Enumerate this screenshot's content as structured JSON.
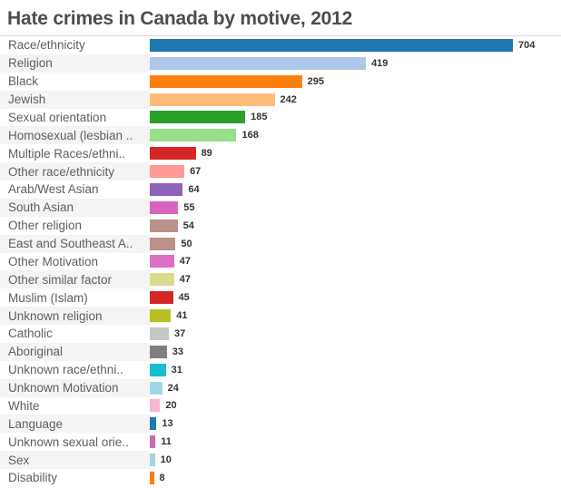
{
  "title": "Hate crimes in Canada by motive, 2012",
  "chart_data": {
    "type": "bar",
    "orientation": "horizontal",
    "title": "Hate crimes in Canada by motive, 2012",
    "xlabel": "",
    "ylabel": "",
    "xlim": [
      0,
      704
    ],
    "grid": false,
    "legend": false,
    "value_labels_shown": true,
    "categories": [
      "Race/ethnicity",
      "Religion",
      "Black",
      "Jewish",
      "Sexual orientation",
      "Homosexual (lesbian ..",
      "Multiple Races/ethni..",
      "Other race/ethnicity",
      "Arab/West Asian",
      "South Asian",
      "Other religion",
      "East and Southeast A..",
      "Other Motivation",
      "Other similar factor",
      "Muslim (Islam)",
      "Unknown religion",
      "Catholic",
      "Aboriginal",
      "Unknown race/ethni..",
      "Unknown Motivation",
      "White",
      "Language",
      "Unknown sexual orie..",
      "Sex",
      "Disability"
    ],
    "values": [
      704,
      419,
      295,
      242,
      185,
      168,
      89,
      67,
      64,
      55,
      54,
      50,
      47,
      47,
      45,
      41,
      37,
      33,
      31,
      24,
      20,
      13,
      11,
      10,
      8
    ],
    "bar_colors": [
      "#1f77b4",
      "#aec7e8",
      "#ff7f0e",
      "#ffbb78",
      "#2ca02c",
      "#98df8a",
      "#d62728",
      "#ff9896",
      "#8d63bb",
      "#d863c0",
      "#bc9189",
      "#bc9189",
      "#dd6fc6",
      "#dbdb8d",
      "#d62728",
      "#bcbd22",
      "#c7c7c7",
      "#7f7f7f",
      "#17becf",
      "#9edae5",
      "#f7b6d2",
      "#1f77b4",
      "#cc6bb4",
      "#a8d3de",
      "#ff7f0e"
    ]
  },
  "colors": {
    "title": "#4d4d4d",
    "category_label": "#5e5e5e",
    "value_label": "#333333",
    "row_stripe": "#f4f4f4",
    "divider": "#d8d8d8",
    "background": "#ffffff"
  }
}
